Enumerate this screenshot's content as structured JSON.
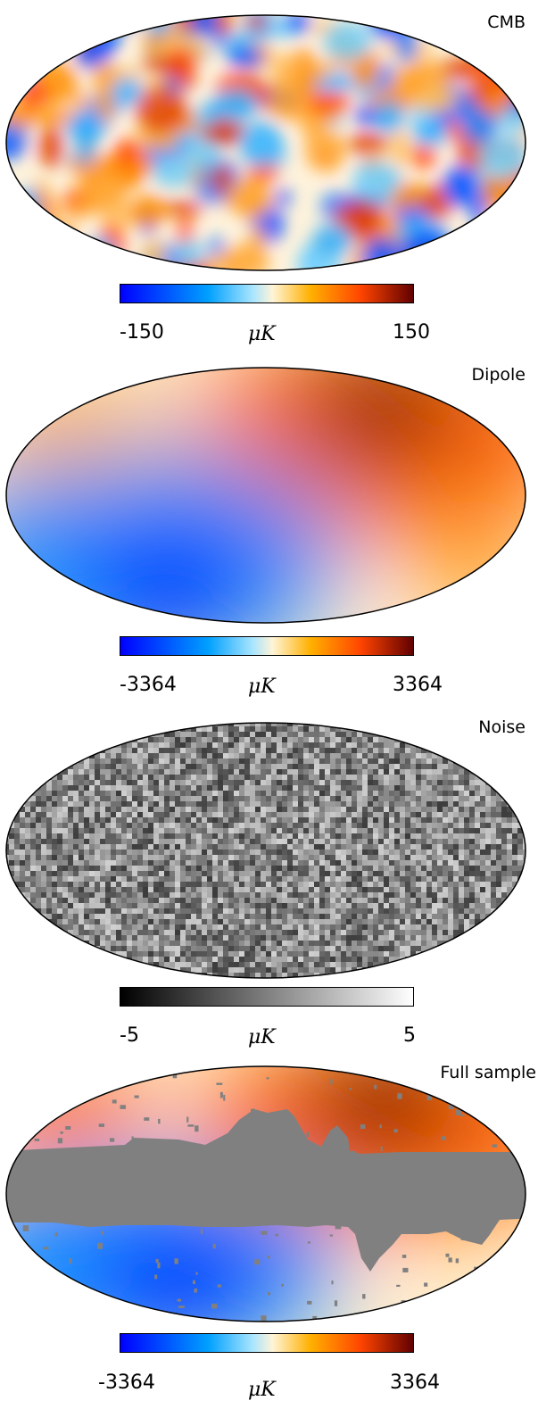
{
  "chart_data": [
    {
      "type": "heatmap",
      "title": "CMB",
      "projection": "mollweide",
      "colormap": "planck",
      "colorbar": {
        "min": -150,
        "max": 150,
        "min_label": "-150",
        "max_label": "150",
        "unit": "μK"
      }
    },
    {
      "type": "heatmap",
      "title": "Dipole",
      "projection": "mollweide",
      "colormap": "planck",
      "colorbar": {
        "min": -3364,
        "max": 3364,
        "min_label": "-3364",
        "max_label": "3364",
        "unit": "μK"
      }
    },
    {
      "type": "heatmap",
      "title": "Noise",
      "projection": "mollweide",
      "colormap": "grayscale",
      "colorbar": {
        "min": -5,
        "max": 5,
        "min_label": "-5",
        "max_label": "5",
        "unit": "μK"
      }
    },
    {
      "type": "heatmap",
      "title": "Full sample",
      "projection": "mollweide",
      "colormap": "planck",
      "mask_color": "#808080",
      "colorbar": {
        "min": -3364,
        "max": 3364,
        "min_label": "-3364",
        "max_label": "3364",
        "unit": "μK"
      }
    }
  ]
}
